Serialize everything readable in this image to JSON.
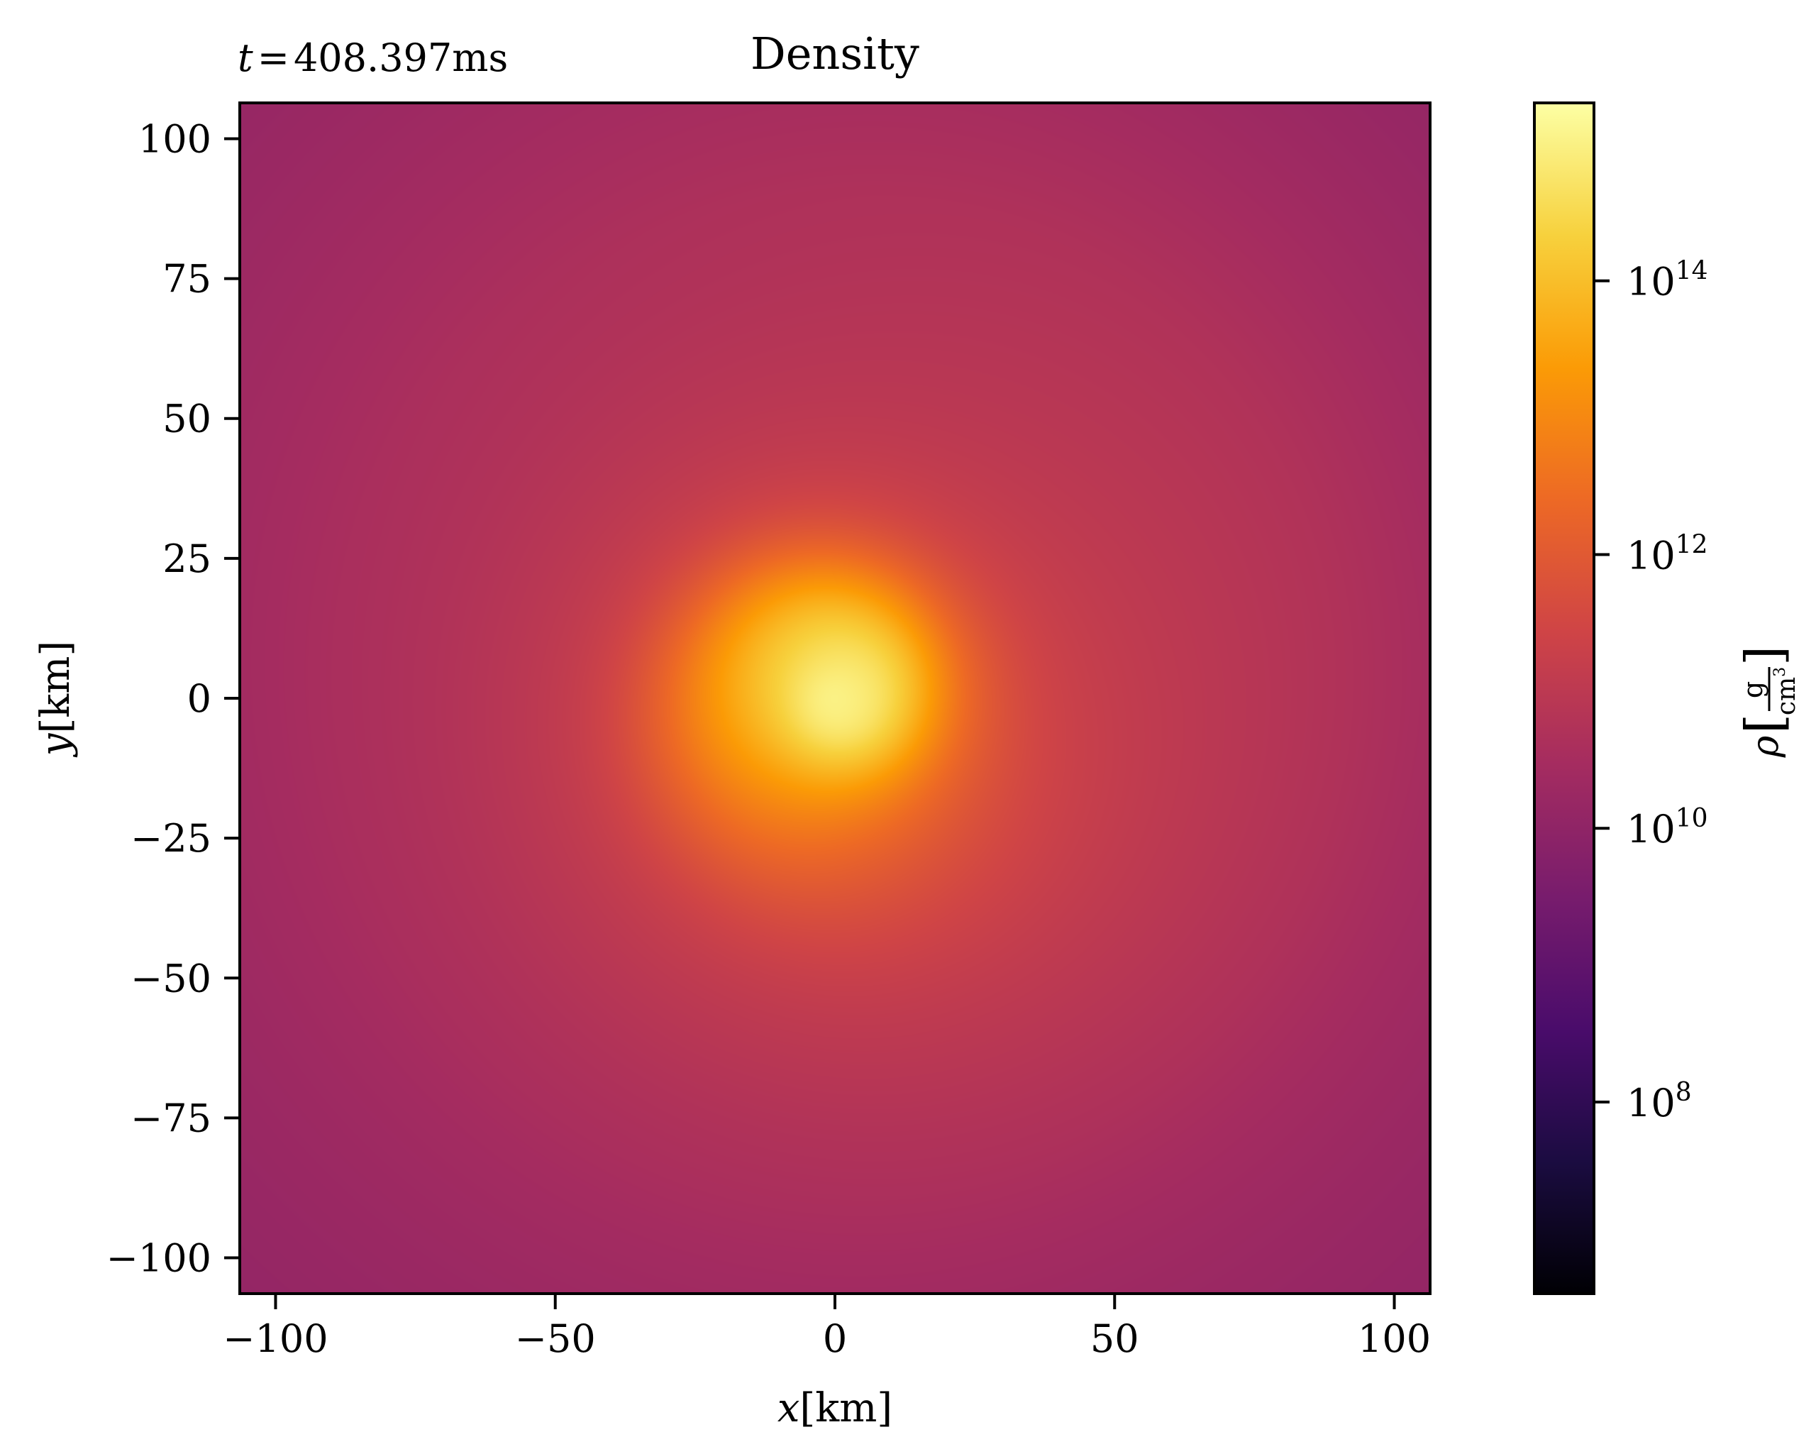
{
  "chart_data": {
    "type": "heatmap",
    "title": "Density",
    "time_label": {
      "prefix": "t",
      "equals": "=",
      "value": "408.397",
      "unit": "ms"
    },
    "xlabel": {
      "symbol": "x",
      "unit": "[km]"
    },
    "ylabel": {
      "symbol": "y",
      "unit": "[km]"
    },
    "xlim": [
      -106.4,
      106.4
    ],
    "ylim": [
      -106.4,
      106.4
    ],
    "x_ticks": [
      {
        "value": -100,
        "label": "−100"
      },
      {
        "value": -50,
        "label": "−50"
      },
      {
        "value": 0,
        "label": "0"
      },
      {
        "value": 50,
        "label": "50"
      },
      {
        "value": 100,
        "label": "100"
      }
    ],
    "y_ticks": [
      {
        "value": 100,
        "label": "100"
      },
      {
        "value": 75,
        "label": "75"
      },
      {
        "value": 50,
        "label": "50"
      },
      {
        "value": 25,
        "label": "25"
      },
      {
        "value": 0,
        "label": "0"
      },
      {
        "value": -25,
        "label": "−25"
      },
      {
        "value": -50,
        "label": "−50"
      },
      {
        "value": -75,
        "label": "−75"
      },
      {
        "value": -100,
        "label": "−100"
      }
    ],
    "grid": false,
    "colorbar": {
      "colormap": "inferno",
      "scale": "log",
      "range_exponent": [
        6.6,
        15.3
      ],
      "label": {
        "symbol": "ρ",
        "numerator": "g",
        "denominator": "cm",
        "denominator_power": "3"
      },
      "ticks": [
        {
          "exponent": 14,
          "base": "10",
          "power": "14"
        },
        {
          "exponent": 12,
          "base": "10",
          "power": "12"
        },
        {
          "exponent": 10,
          "base": "10",
          "power": "10"
        },
        {
          "exponent": 8,
          "base": "10",
          "power": "8"
        }
      ]
    },
    "field": {
      "description_exponent": {
        "center_km": [
          0,
          0
        ],
        "peak_exponent": 15.0,
        "background_exponent": 10.3,
        "core_radius_km": 30,
        "halo_radius_km": 75
      }
    },
    "colors": {
      "stops": [
        "#000004",
        "#1b0c41",
        "#4a0c6b",
        "#781c6d",
        "#a52c60",
        "#cf4446",
        "#ed6925",
        "#fb9b06",
        "#f7d13d",
        "#fcffa4"
      ]
    }
  }
}
